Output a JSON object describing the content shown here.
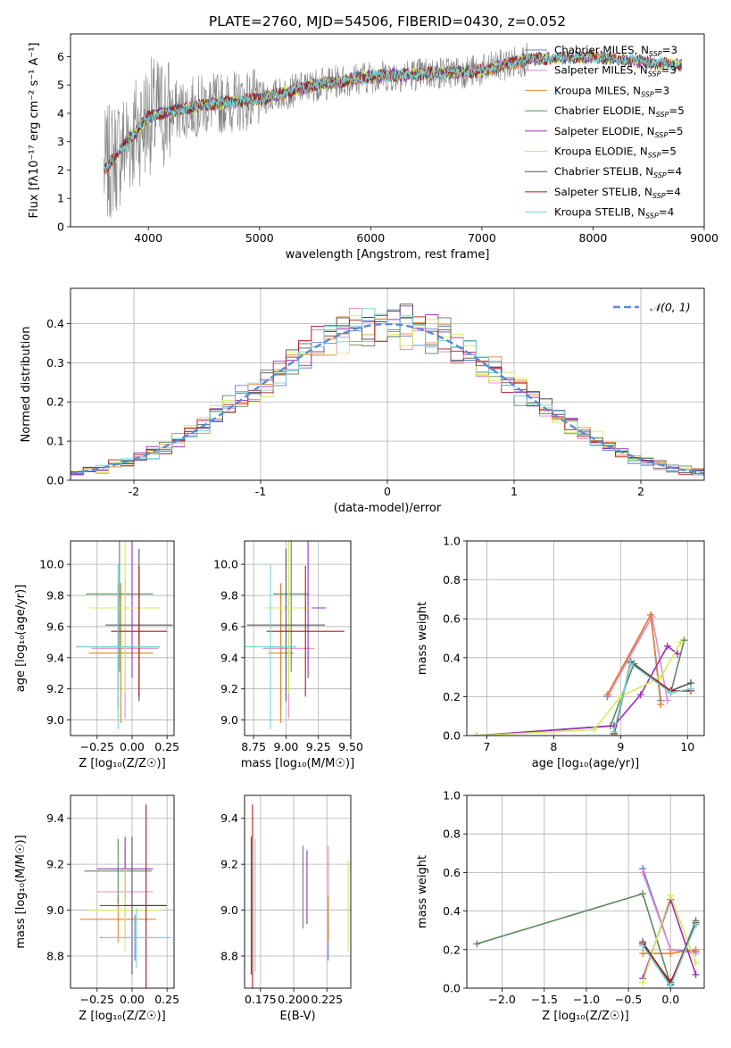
{
  "figure": {
    "title": "PLATE=2760, MJD=54506, FIBERID=0430, z=0.052"
  },
  "colors": {
    "Chabrier MILES": "#5b7fd1",
    "Salpeter MILES": "#e58ac8",
    "Kroupa MILES": "#e8822c",
    "Chabrier ELODIE": "#5d8a5f",
    "Salpeter ELODIE": "#9b2dbd",
    "Kroupa ELODIE": "#d4ea5a",
    "Chabrier STELIB": "#555555",
    "Salpeter STELIB": "#b01818",
    "Kroupa STELIB": "#6fd5d8",
    "data": "#808080",
    "normal": "#5b8bd6"
  },
  "chart_data": [
    {
      "id": "spectrum",
      "type": "line",
      "xlabel": "wavelength [Angstrom, rest frame]",
      "ylabel": "Flux [fλ10⁻¹⁷ erg cm⁻² s⁻¹ A⁻¹]",
      "xlim": [
        3300,
        9000
      ],
      "ylim": [
        0,
        6.8
      ],
      "xticks": [
        4000,
        5000,
        6000,
        7000,
        8000,
        9000
      ],
      "yticks": [
        0,
        1,
        2,
        3,
        4,
        5,
        6
      ],
      "legend": "upper-right",
      "series": [
        {
          "name": "Chabrier MILES, N_SSP=3"
        },
        {
          "name": "Salpeter MILES, N_SSP=3"
        },
        {
          "name": "Kroupa MILES, N_SSP=3"
        },
        {
          "name": "Chabrier ELODIE, N_SSP=5"
        },
        {
          "name": "Salpeter ELODIE, N_SSP=5"
        },
        {
          "name": "Kroupa ELODIE, N_SSP=5"
        },
        {
          "name": "Chabrier STELIB, N_SSP=4"
        },
        {
          "name": "Salpeter STELIB, N_SSP=4"
        },
        {
          "name": "Kroupa STELIB, N_SSP=4"
        }
      ],
      "continuum_model": {
        "x": [
          3600,
          4000,
          4500,
          5000,
          5500,
          6000,
          6500,
          7000,
          7400,
          8000,
          8500,
          8800
        ],
        "y": [
          2.0,
          3.9,
          4.3,
          4.5,
          5.0,
          5.3,
          5.4,
          5.5,
          5.9,
          6.0,
          5.8,
          5.7
        ]
      },
      "miles_range": [
        3600,
        7400
      ],
      "data_range": [
        3600,
        7420
      ],
      "full_range": [
        3600,
        8800
      ]
    },
    {
      "id": "residuals",
      "type": "line",
      "xlabel": "(data-model)/error",
      "ylabel": "Normed distribution",
      "xlim": [
        -2.5,
        2.5
      ],
      "ylim": [
        0,
        0.49
      ],
      "xticks": [
        -2,
        -1,
        0,
        1,
        2
      ],
      "yticks": [
        0.0,
        0.1,
        0.2,
        0.3,
        0.4
      ],
      "legend": "upper-right",
      "normal_label": "𝒩(0, 1)",
      "bins": [
        -2.5,
        -2.4,
        -2.3,
        -2.2,
        -2.1,
        -2.0,
        -1.9,
        -1.8,
        -1.7,
        -1.6,
        -1.5,
        -1.4,
        -1.3,
        -1.2,
        -1.1,
        -1.0,
        -0.9,
        -0.8,
        -0.7,
        -0.6,
        -0.5,
        -0.4,
        -0.3,
        -0.2,
        -0.1,
        0.0,
        0.1,
        0.2,
        0.3,
        0.4,
        0.5,
        0.6,
        0.7,
        0.8,
        0.9,
        1.0,
        1.1,
        1.2,
        1.3,
        1.4,
        1.5,
        1.6,
        1.7,
        1.8,
        1.9,
        2.0,
        2.1,
        2.2,
        2.3,
        2.4,
        2.5
      ]
    },
    {
      "id": "age-vs-Z",
      "type": "scatter",
      "xlabel": "Z [log₁₀(Z/Z☉)]",
      "ylabel": "age  [log₁₀(age/yr)]",
      "xlim": [
        -0.44,
        0.3
      ],
      "ylim": [
        8.9,
        10.15
      ],
      "xticks": [
        -0.25,
        0.0,
        0.25
      ],
      "xticklabels": [
        "−0.25",
        "0.00",
        "0.25"
      ],
      "yticks": [
        9.0,
        9.2,
        9.4,
        9.6,
        9.8,
        10.0
      ],
      "points": [
        {
          "model": "Chabrier MILES",
          "x": -0.1,
          "y": 9.47,
          "xerr": 0.3,
          "yerr": 0.4
        },
        {
          "model": "Salpeter MILES",
          "x": -0.05,
          "y": 9.46,
          "xerr": 0.24,
          "yerr": 0.45
        },
        {
          "model": "Kroupa MILES",
          "x": -0.08,
          "y": 9.43,
          "xerr": 0.23,
          "yerr": 0.45
        },
        {
          "model": "Chabrier ELODIE",
          "x": -0.09,
          "y": 9.81,
          "xerr": 0.24,
          "yerr": 0.5
        },
        {
          "model": "Salpeter ELODIE",
          "x": 0.0,
          "y": 9.72,
          "xerr": 0.12,
          "yerr": 0.45
        },
        {
          "model": "Kroupa ELODIE",
          "x": -0.05,
          "y": 9.72,
          "xerr": 0.25,
          "yerr": 0.55
        },
        {
          "model": "Chabrier STELIB",
          "x": 0.05,
          "y": 9.61,
          "xerr": 0.24,
          "yerr": 0.49
        },
        {
          "model": "Salpeter STELIB",
          "x": 0.05,
          "y": 9.57,
          "xerr": 0.2,
          "yerr": 0.42
        },
        {
          "model": "Kroupa STELIB",
          "x": -0.1,
          "y": 9.47,
          "xerr": 0.3,
          "yerr": 0.53
        }
      ]
    },
    {
      "id": "age-vs-mass",
      "type": "scatter",
      "xlabel": "mass [log₁₀(M/M☉)]",
      "ylabel": "",
      "xlim": [
        8.68,
        9.5
      ],
      "ylim": [
        8.9,
        10.15
      ],
      "xticks": [
        8.75,
        9.0,
        9.25,
        9.5
      ],
      "xticklabels": [
        "8.75",
        "9.00",
        "9.25",
        "9.50"
      ],
      "yticks": [
        9.0,
        9.2,
        9.4,
        9.6,
        9.8,
        10.0
      ],
      "points": [
        {
          "model": "Chabrier MILES",
          "x": 8.96,
          "y": 9.47,
          "xerr": 0.1,
          "yerr": 0.4
        },
        {
          "model": "Salpeter MILES",
          "x": 9.02,
          "y": 9.46,
          "xerr": 0.2,
          "yerr": 0.45
        },
        {
          "model": "Kroupa MILES",
          "x": 8.96,
          "y": 9.43,
          "xerr": 0.1,
          "yerr": 0.45
        },
        {
          "model": "Chabrier ELODIE",
          "x": 9.04,
          "y": 9.81,
          "xerr": 0.14,
          "yerr": 0.5
        },
        {
          "model": "Salpeter ELODIE",
          "x": 9.17,
          "y": 9.72,
          "xerr": 0.14,
          "yerr": 0.45
        },
        {
          "model": "Kroupa ELODIE",
          "x": 9.02,
          "y": 9.72,
          "xerr": 0.18,
          "yerr": 0.55
        },
        {
          "model": "Chabrier STELIB",
          "x": 9.0,
          "y": 9.61,
          "xerr": 0.3,
          "yerr": 0.49
        },
        {
          "model": "Salpeter STELIB",
          "x": 9.15,
          "y": 9.57,
          "xerr": 0.3,
          "yerr": 0.42
        },
        {
          "model": "Kroupa STELIB",
          "x": 8.88,
          "y": 9.47,
          "xerr": 0.2,
          "yerr": 0.53
        }
      ]
    },
    {
      "id": "mass-weight-vs-age",
      "type": "line",
      "xlabel": "age  [log₁₀(age/yr)]",
      "ylabel": "mass weight",
      "xlim": [
        6.7,
        10.25
      ],
      "ylim": [
        0,
        1.0
      ],
      "xticks": [
        7,
        8,
        9,
        10
      ],
      "yticks": [
        0.0,
        0.2,
        0.4,
        0.6,
        0.8,
        1.0
      ],
      "series": [
        {
          "model": "Chabrier MILES",
          "x": [
            8.8,
            9.45,
            9.6
          ],
          "y": [
            0.2,
            0.62,
            0.18
          ]
        },
        {
          "model": "Salpeter MILES",
          "x": [
            8.82,
            9.47,
            9.7
          ],
          "y": [
            0.21,
            0.61,
            0.18
          ]
        },
        {
          "model": "Kroupa MILES",
          "x": [
            8.8,
            9.45,
            9.6
          ],
          "y": [
            0.21,
            0.62,
            0.16
          ]
        },
        {
          "model": "Chabrier ELODIE",
          "x": [
            6.85,
            8.85,
            9.2,
            9.75,
            9.95
          ],
          "y": [
            0.0,
            0.05,
            0.37,
            0.22,
            0.49
          ]
        },
        {
          "model": "Salpeter ELODIE",
          "x": [
            6.85,
            8.9,
            9.3,
            9.7,
            9.85
          ],
          "y": [
            0.0,
            0.05,
            0.21,
            0.46,
            0.42
          ]
        },
        {
          "model": "Kroupa ELODIE",
          "x": [
            6.85,
            8.6,
            9.0,
            9.6,
            9.9
          ],
          "y": [
            0.0,
            0.03,
            0.2,
            0.3,
            0.48
          ]
        },
        {
          "model": "Chabrier STELIB",
          "x": [
            8.9,
            9.15,
            9.75,
            10.05
          ],
          "y": [
            0.0,
            0.38,
            0.23,
            0.27
          ]
        },
        {
          "model": "Salpeter STELIB",
          "x": [
            8.9,
            9.15,
            9.75,
            10.05
          ],
          "y": [
            0.01,
            0.37,
            0.23,
            0.23
          ]
        },
        {
          "model": "Kroupa STELIB",
          "x": [
            8.9,
            9.15,
            9.75,
            10.05
          ],
          "y": [
            0.02,
            0.37,
            0.22,
            0.24
          ]
        }
      ]
    },
    {
      "id": "mass-vs-Z",
      "type": "scatter",
      "xlabel": "Z [log₁₀(Z/Z☉)]",
      "ylabel": "mass [log₁₀(M/M☉)]",
      "xlim": [
        -0.44,
        0.3
      ],
      "ylim": [
        8.66,
        9.5
      ],
      "xticks": [
        -0.25,
        0.0,
        0.25
      ],
      "xticklabels": [
        "−0.25",
        "0.00",
        "0.25"
      ],
      "yticks": [
        8.8,
        9.0,
        9.2,
        9.4
      ],
      "points": [
        {
          "model": "Chabrier MILES",
          "x": 0.02,
          "y": 8.88,
          "xerr": 0.25,
          "yerr": 0.1
        },
        {
          "model": "Salpeter MILES",
          "x": -0.05,
          "y": 9.08,
          "xerr": 0.2,
          "yerr": 0.2
        },
        {
          "model": "Kroupa MILES",
          "x": -0.1,
          "y": 8.96,
          "xerr": 0.27,
          "yerr": 0.1
        },
        {
          "model": "Chabrier ELODIE",
          "x": -0.1,
          "y": 9.17,
          "xerr": 0.24,
          "yerr": 0.14
        },
        {
          "model": "Salpeter ELODIE",
          "x": -0.05,
          "y": 9.18,
          "xerr": 0.2,
          "yerr": 0.14
        },
        {
          "model": "Kroupa ELODIE",
          "x": -0.05,
          "y": 9.0,
          "xerr": 0.25,
          "yerr": 0.18
        },
        {
          "model": "Chabrier STELIB",
          "x": 0.0,
          "y": 9.02,
          "xerr": 0.23,
          "yerr": 0.3
        },
        {
          "model": "Salpeter STELIB",
          "x": 0.1,
          "y": 9.02,
          "xerr": 0.15,
          "yerr": 0.44
        },
        {
          "model": "Kroupa STELIB",
          "x": 0.03,
          "y": 8.88,
          "xerr": 0.25,
          "yerr": 0.13
        }
      ]
    },
    {
      "id": "mass-vs-EBV",
      "type": "scatter",
      "xlabel": "E(B-V)",
      "ylabel": "",
      "xlim": [
        0.163,
        0.243
      ],
      "ylim": [
        8.66,
        9.5
      ],
      "xticks": [
        0.175,
        0.2,
        0.225
      ],
      "xticklabels": [
        "0.175",
        "0.200",
        "0.225"
      ],
      "yticks": [
        8.8,
        9.0,
        9.2,
        9.4
      ],
      "points": [
        {
          "model": "Chabrier MILES",
          "x": 0.226,
          "y": 8.88,
          "xerr": 0,
          "yerr": 0.1
        },
        {
          "model": "Salpeter MILES",
          "x": 0.226,
          "y": 9.08,
          "xerr": 0,
          "yerr": 0.2
        },
        {
          "model": "Kroupa MILES",
          "x": 0.226,
          "y": 8.96,
          "xerr": 0,
          "yerr": 0.1
        },
        {
          "model": "Chabrier ELODIE",
          "x": 0.207,
          "y": 9.1,
          "xerr": 0,
          "yerr": 0.18
        },
        {
          "model": "Salpeter ELODIE",
          "x": 0.21,
          "y": 9.1,
          "xerr": 0,
          "yerr": 0.16
        },
        {
          "model": "Kroupa ELODIE",
          "x": 0.241,
          "y": 9.02,
          "xerr": 0,
          "yerr": 0.2
        },
        {
          "model": "Chabrier STELIB",
          "x": 0.168,
          "y": 9.02,
          "xerr": 0,
          "yerr": 0.3
        },
        {
          "model": "Salpeter STELIB",
          "x": 0.169,
          "y": 9.02,
          "xerr": 0,
          "yerr": 0.44
        },
        {
          "model": "Kroupa STELIB",
          "x": 0.171,
          "y": 9.02,
          "xerr": 0,
          "yerr": 0.29
        }
      ]
    },
    {
      "id": "mass-weight-vs-Z",
      "type": "line",
      "xlabel": "Z [log₁₀(Z/Z☉)]",
      "ylabel": "mass weight",
      "xlim": [
        -2.42,
        0.4
      ],
      "ylim": [
        0,
        1.0
      ],
      "xticks": [
        -2.0,
        -1.5,
        -1.0,
        -0.5,
        0.0
      ],
      "xticklabels": [
        "−2.0",
        "−1.5",
        "−1.0",
        "−0.5",
        "0.0"
      ],
      "yticks": [
        0.0,
        0.2,
        0.4,
        0.6,
        0.8,
        1.0
      ],
      "series": [
        {
          "model": "Chabrier MILES",
          "x": [
            -0.33,
            0.0,
            0.3
          ],
          "y": [
            0.62,
            0.2,
            0.19
          ]
        },
        {
          "model": "Salpeter MILES",
          "x": [
            -0.33,
            0.0,
            0.3
          ],
          "y": [
            0.6,
            0.2,
            0.18
          ]
        },
        {
          "model": "Kroupa MILES",
          "x": [
            -0.33,
            0.0,
            0.3
          ],
          "y": [
            0.18,
            0.18,
            0.2
          ]
        },
        {
          "model": "Chabrier ELODIE",
          "x": [
            -2.3,
            -0.33,
            0.0,
            0.3
          ],
          "y": [
            0.23,
            0.49,
            0.02,
            0.35
          ]
        },
        {
          "model": "Salpeter ELODIE",
          "x": [
            -0.33,
            0.0,
            0.3
          ],
          "y": [
            0.05,
            0.46,
            0.07
          ]
        },
        {
          "model": "Kroupa ELODIE",
          "x": [
            -0.33,
            0.0,
            0.3
          ],
          "y": [
            0.03,
            0.48,
            0.13
          ]
        },
        {
          "model": "Chabrier STELIB",
          "x": [
            -0.33,
            0.0,
            0.3
          ],
          "y": [
            0.24,
            0.02,
            0.34
          ]
        },
        {
          "model": "Salpeter STELIB",
          "x": [
            -0.33,
            0.0,
            0.3
          ],
          "y": [
            0.23,
            0.03,
            0.33
          ]
        },
        {
          "model": "Kroupa STELIB",
          "x": [
            -0.33,
            0.0,
            0.3
          ],
          "y": [
            0.22,
            0.01,
            0.33
          ]
        }
      ]
    }
  ]
}
